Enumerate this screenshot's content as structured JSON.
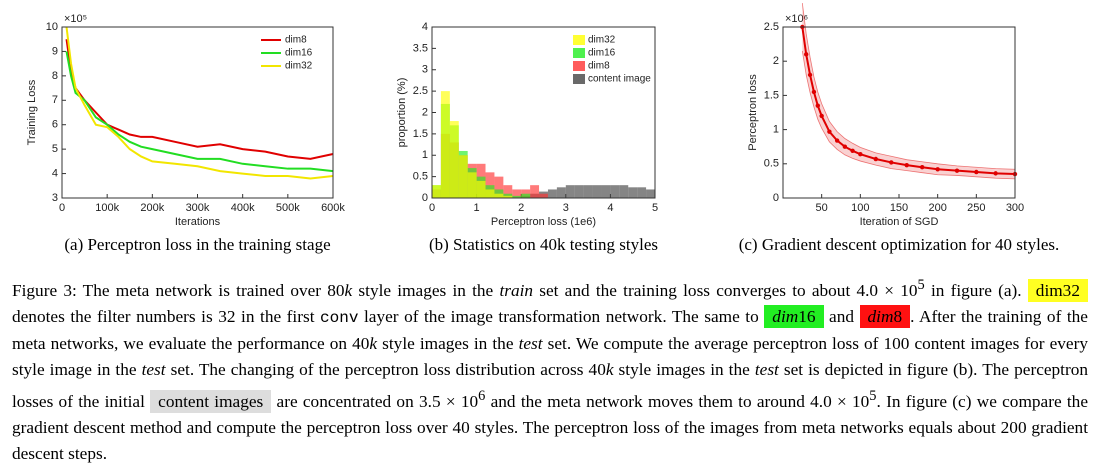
{
  "chart_data": [
    {
      "type": "line",
      "subcaption": "(a) Perceptron loss in the training stage",
      "xlabel": "Iterations",
      "ylabel": "Training Loss",
      "y_scale": "×10⁵",
      "xlim": [
        0,
        600000
      ],
      "xticks": [
        0,
        {
          "value": 100000,
          "label": "100k"
        },
        {
          "value": 200000,
          "label": "200k"
        },
        {
          "value": 300000,
          "label": "300k"
        },
        {
          "value": 400000,
          "label": "400k"
        },
        {
          "value": 500000,
          "label": "500k"
        },
        {
          "value": 600000,
          "label": "600k"
        }
      ],
      "ylim": [
        3,
        10
      ],
      "yticks": [
        3,
        4,
        5,
        6,
        7,
        8,
        9,
        10
      ],
      "legend": "upper right",
      "x": [
        10000,
        20000,
        30000,
        50000,
        75000,
        100000,
        125000,
        150000,
        175000,
        200000,
        250000,
        300000,
        350000,
        400000,
        450000,
        500000,
        550000,
        600000
      ],
      "series": [
        {
          "name": "dim8",
          "color": "#e00000",
          "values": [
            9.5,
            8.2,
            7.5,
            7.0,
            6.5,
            6.0,
            5.8,
            5.6,
            5.5,
            5.5,
            5.3,
            5.1,
            5.2,
            5.0,
            4.9,
            4.7,
            4.6,
            4.8
          ]
        },
        {
          "name": "dim16",
          "color": "#22dd22",
          "values": [
            9.0,
            8.0,
            7.3,
            7.0,
            6.3,
            6.0,
            5.6,
            5.3,
            5.1,
            5.0,
            4.8,
            4.6,
            4.6,
            4.4,
            4.3,
            4.2,
            4.2,
            4.1
          ]
        },
        {
          "name": "dim32",
          "color": "#f2e600",
          "values": [
            10,
            8.5,
            7.5,
            6.8,
            6.0,
            5.9,
            5.5,
            5.0,
            4.7,
            4.5,
            4.4,
            4.3,
            4.1,
            4.0,
            3.9,
            3.9,
            3.8,
            3.9
          ]
        }
      ]
    },
    {
      "type": "histogram",
      "subcaption": "(b) Statistics on 40k testing styles",
      "xlabel": "Perceptron loss (1e6)",
      "ylabel": "proportion (%)",
      "xlim": [
        0,
        5
      ],
      "xticks": [
        0,
        1,
        2,
        3,
        4,
        5
      ],
      "ylim": [
        0,
        4
      ],
      "yticks": [
        0,
        0.5,
        1,
        1.5,
        2,
        2.5,
        3,
        3.5,
        4
      ],
      "legend": "upper right",
      "bins": [
        0,
        0.2,
        0.4,
        0.6,
        0.8,
        1.0,
        1.2,
        1.4,
        1.6,
        1.8,
        2.0,
        2.2,
        2.4,
        2.6,
        2.8,
        3.0,
        3.2,
        3.4,
        3.6,
        3.8,
        4.0,
        4.2,
        4.4,
        4.6,
        4.8,
        5.0
      ],
      "series": [
        {
          "name": "dim32",
          "color": "#ffff00",
          "values": [
            0.3,
            2.5,
            1.8,
            1.0,
            0.6,
            0.4,
            0.2,
            0.1,
            0.05,
            0,
            0,
            0,
            0,
            0,
            0,
            0,
            0,
            0,
            0,
            0,
            0,
            0,
            0,
            0,
            0
          ]
        },
        {
          "name": "dim16",
          "color": "#22ee22",
          "values": [
            0.3,
            2.2,
            1.7,
            1.1,
            0.7,
            0.5,
            0.3,
            0.2,
            0.1,
            0.05,
            0.1,
            0,
            0,
            0,
            0,
            0,
            0,
            0,
            0,
            0,
            0,
            0,
            0,
            0,
            0
          ]
        },
        {
          "name": "dim8",
          "color": "#ff3333",
          "values": [
            0.2,
            1.5,
            1.3,
            1.0,
            0.8,
            0.8,
            0.6,
            0.5,
            0.3,
            0.2,
            0.2,
            0.3,
            0.1,
            0,
            0,
            0,
            0,
            0,
            0,
            0,
            0,
            0,
            0,
            0,
            0
          ]
        },
        {
          "name": "content image",
          "color": "#444444",
          "values": [
            0,
            0,
            0,
            0,
            0,
            0,
            0,
            0,
            0,
            0,
            0.05,
            0.1,
            0.15,
            0.2,
            0.25,
            0.3,
            0.3,
            0.3,
            0.3,
            0.3,
            0.3,
            0.3,
            0.25,
            0.25,
            0.2
          ]
        }
      ]
    },
    {
      "type": "line",
      "subcaption": "(c) Gradient descent optimization for 40 styles.",
      "xlabel": "Iteration of SGD",
      "ylabel": "Perceptron loss",
      "y_scale": "×10⁶",
      "xlim": [
        0,
        300
      ],
      "xticks": [
        50,
        100,
        150,
        200,
        250,
        300
      ],
      "ylim": [
        0,
        2.5
      ],
      "yticks": [
        0,
        0.5,
        1,
        1.5,
        2,
        2.5
      ],
      "markers": true,
      "x": [
        25,
        30,
        35,
        40,
        45,
        50,
        60,
        70,
        80,
        90,
        100,
        120,
        140,
        160,
        180,
        200,
        225,
        250,
        275,
        300
      ],
      "series": [
        {
          "color": "#e00000",
          "values": [
            2.5,
            2.1,
            1.8,
            1.55,
            1.35,
            1.2,
            0.97,
            0.84,
            0.75,
            0.69,
            0.64,
            0.57,
            0.52,
            0.48,
            0.45,
            0.42,
            0.4,
            0.38,
            0.36,
            0.35
          ],
          "errors": [
            0.35,
            0.3,
            0.26,
            0.22,
            0.2,
            0.18,
            0.15,
            0.13,
            0.12,
            0.11,
            0.1,
            0.09,
            0.09,
            0.08,
            0.08,
            0.08,
            0.07,
            0.07,
            0.07,
            0.07
          ]
        }
      ]
    }
  ],
  "caption": {
    "runs": [
      "Figure 3:",
      " The meta network is trained over ",
      "80",
      "k",
      " style images in the ",
      "train",
      " set and the training loss converges to about ",
      "4.0 × 10",
      "5",
      " in figure (a). ",
      "dim32",
      " denotes the filter numbers is 32 in the first ",
      "conv",
      " layer of the image transformation network. The same to ",
      "dim",
      "16",
      " and ",
      "dim",
      "8",
      ". After the training of the meta networks, we evaluate the performance on ",
      "40",
      "k",
      " style images in the ",
      "test",
      " set. We compute the average perceptron loss of 100 content images for every style image in the ",
      "test",
      " set. The changing of the perceptron loss distribution across ",
      "40",
      "k",
      " style images in the ",
      "test",
      " set is depicted in figure (b). The perceptron losses of the initial ",
      "content images",
      " are concentrated on ",
      "3.5 × 10",
      "6",
      " and the meta network moves them to around ",
      "4.0 × 10",
      "5",
      ". In figure (c) we compare the gradient descent method and compute the perceptron loss over 40 styles. The perceptron loss of the images from meta networks equals about 200 gradient descent steps."
    ]
  }
}
